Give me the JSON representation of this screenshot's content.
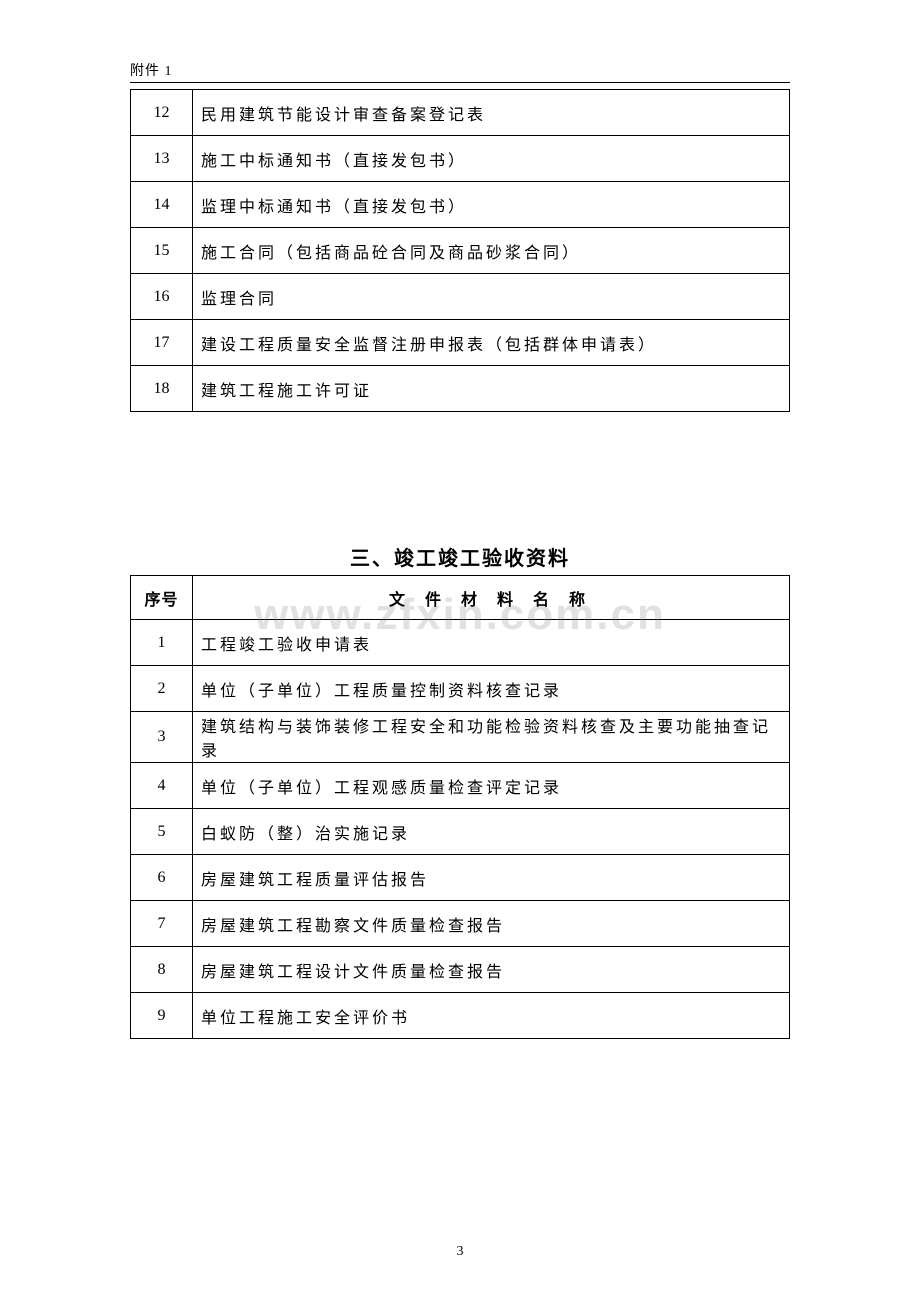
{
  "header": {
    "label": "附件 1"
  },
  "watermark": "www.zfxin.com.cn",
  "pageNumber": "3",
  "table1": {
    "rows": [
      {
        "num": "12",
        "txt": "民用建筑节能设计审查备案登记表"
      },
      {
        "num": "13",
        "txt": "施工中标通知书（直接发包书）"
      },
      {
        "num": "14",
        "txt": "监理中标通知书（直接发包书）"
      },
      {
        "num": "15",
        "txt": "施工合同（包括商品砼合同及商品砂浆合同）"
      },
      {
        "num": "16",
        "txt": "监理合同"
      },
      {
        "num": "17",
        "txt": "建设工程质量安全监督注册申报表（包括群体申请表）"
      },
      {
        "num": "18",
        "txt": "建筑工程施工许可证"
      }
    ]
  },
  "section2": {
    "title": "三、竣工竣工验收资料",
    "header": {
      "num": "序号",
      "txt": "文 件 材 料 名 称"
    },
    "rows": [
      {
        "num": "1",
        "txt": "工程竣工验收申请表"
      },
      {
        "num": "2",
        "txt": "单位（子单位）工程质量控制资料核查记录"
      },
      {
        "num": "3",
        "txt": "建筑结构与装饰装修工程安全和功能检验资料核查及主要功能抽查记录"
      },
      {
        "num": "4",
        "txt": "单位（子单位）工程观感质量检查评定记录"
      },
      {
        "num": "5",
        "txt": "白蚁防（整）治实施记录"
      },
      {
        "num": "6",
        "txt": "房屋建筑工程质量评估报告"
      },
      {
        "num": "7",
        "txt": "房屋建筑工程勘察文件质量检查报告"
      },
      {
        "num": "8",
        "txt": "房屋建筑工程设计文件质量检查报告"
      },
      {
        "num": "9",
        "txt": "单位工程施工安全评价书"
      }
    ]
  }
}
